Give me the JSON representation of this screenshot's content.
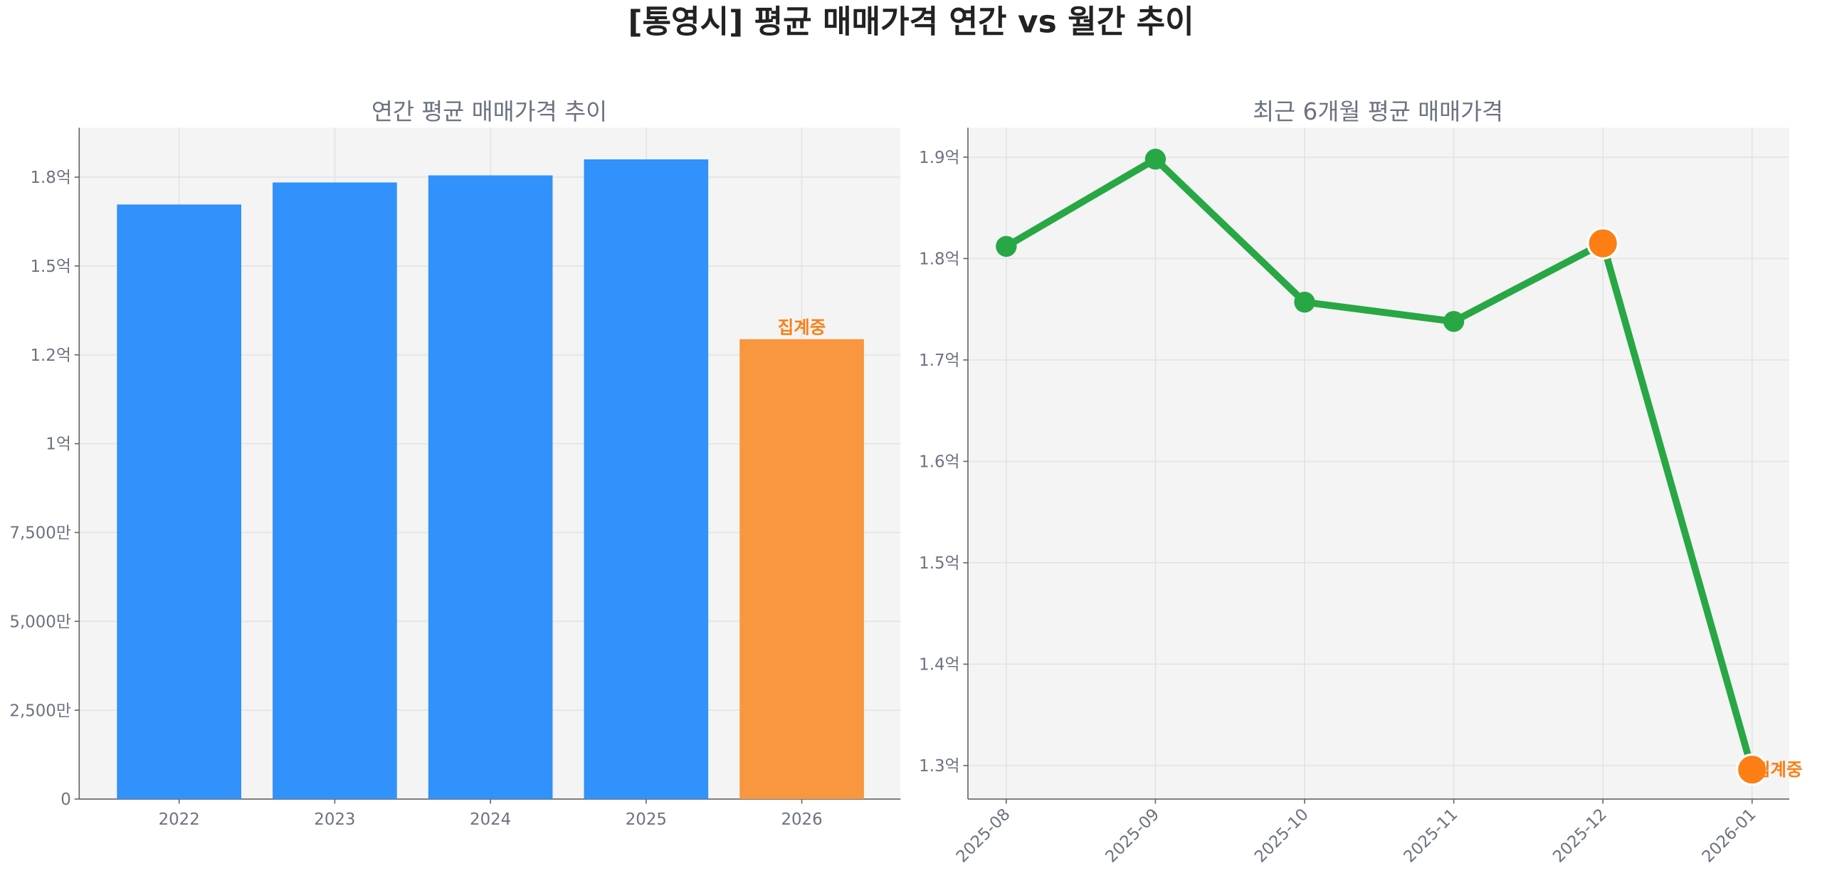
{
  "title": "[통영시] 평균 매매가격 연간 vs 월간 추이",
  "colors": {
    "bar": "#3092fa",
    "bar_partial": "#f99640",
    "line": "#28a745",
    "partial_marker": "#fd7e14",
    "plot_bg": "#f4f4f4"
  },
  "chart_data": [
    {
      "type": "bar",
      "title": "연간 평균 매매가격 추이",
      "xlabel": "",
      "ylabel": "",
      "categories": [
        "2022",
        "2023",
        "2024",
        "2025",
        "2026"
      ],
      "values": [
        167300000,
        173500000,
        175500000,
        180000000,
        129400000
      ],
      "partial": [
        false,
        false,
        false,
        false,
        true
      ],
      "annotation": "집계중",
      "ylim": [
        0,
        188900000
      ],
      "yticks": [
        0,
        25000000,
        50000000,
        75000000,
        100000000,
        125000000,
        150000000,
        175000000
      ],
      "ytick_labels": [
        "0",
        "2,500만",
        "5,000만",
        "7,500만",
        "1억",
        "1.2억",
        "1.5억",
        "1.8억"
      ],
      "grid": true
    },
    {
      "type": "line",
      "title": "최근 6개월 평균 매매가격",
      "xlabel": "",
      "ylabel": "",
      "categories": [
        "2025-08",
        "2025-09",
        "2025-10",
        "2025-11",
        "2025-12",
        "2026-01"
      ],
      "values": [
        181200000,
        189800000,
        175700000,
        173800000,
        181500000,
        129600000
      ],
      "partial": [
        false,
        false,
        false,
        false,
        true,
        true
      ],
      "annotation": "집계중",
      "ylim": [
        126700000,
        192900000
      ],
      "yticks": [
        130000000,
        140000000,
        150000000,
        160000000,
        170000000,
        180000000,
        190000000
      ],
      "ytick_labels": [
        "1.3억",
        "1.4억",
        "1.5억",
        "1.6억",
        "1.7억",
        "1.8억",
        "1.9억"
      ],
      "grid": true
    }
  ]
}
